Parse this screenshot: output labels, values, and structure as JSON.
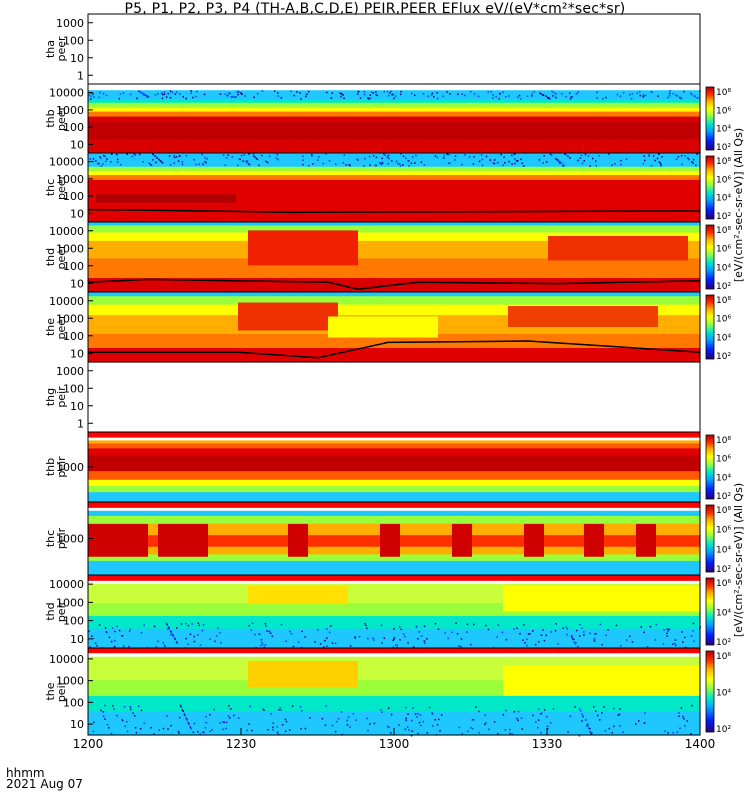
{
  "title": "P5, P1, P2, P3, P4 (TH-A,B,C,D,E) PEIR,PEER EFlux eV/(eV*cm²*sec*sr)",
  "time_axis_label": "hhmm",
  "date_label": "2021 Aug 07",
  "chart_data": {
    "type": "heatmap",
    "x_ticks": [
      "1200",
      "1230",
      "1300",
      "1330",
      "1400"
    ],
    "x_range": [
      "1200",
      "1400"
    ],
    "panels": [
      {
        "id": "tha-peer",
        "label_top": "tha",
        "label_bottom": "peer",
        "y_ticks": [
          "1000",
          "100",
          "10",
          "1"
        ],
        "colorbar": false,
        "empty": true
      },
      {
        "id": "thb-peer",
        "label_top": "thb",
        "label_bottom": "peer",
        "y_ticks": [
          "10000",
          "1000",
          "100",
          "10"
        ],
        "colorbar": true,
        "colorbar_ticks": [
          "10⁸",
          "10⁶",
          "10⁴",
          "10²"
        ]
      },
      {
        "id": "thc-peer",
        "label_top": "thc",
        "label_bottom": "peer",
        "y_ticks": [
          "10000",
          "1000",
          "100",
          "10"
        ],
        "colorbar": true,
        "colorbar_ticks": [
          "10⁸",
          "10⁶",
          "10⁴",
          "10²"
        ]
      },
      {
        "id": "thd-peer",
        "label_top": "thd",
        "label_bottom": "peer",
        "y_ticks": [
          "10000",
          "1000",
          "100",
          "10"
        ],
        "colorbar": true,
        "colorbar_ticks": [
          "10⁸",
          "10⁶",
          "10⁴",
          "10²"
        ]
      },
      {
        "id": "the-peer",
        "label_top": "the",
        "label_bottom": "peer",
        "y_ticks": [
          "10000",
          "1000",
          "100",
          "10"
        ],
        "colorbar": true,
        "colorbar_ticks": [
          "10⁸",
          "10⁶",
          "10⁴",
          "10²"
        ]
      },
      {
        "id": "thg-peir",
        "label_top": "thg",
        "label_bottom": "peir",
        "y_ticks": [
          "1000",
          "100",
          "10",
          "1"
        ],
        "colorbar": false,
        "empty": true
      },
      {
        "id": "thb-peir",
        "label_top": "thb",
        "label_bottom": "peir",
        "y_ticks": [
          "1000"
        ],
        "colorbar": true,
        "colorbar_ticks": [
          "10⁸",
          "10⁶",
          "10⁴",
          "10²"
        ]
      },
      {
        "id": "thc-peir",
        "label_top": "thc",
        "label_bottom": "peir",
        "y_ticks": [
          "1000"
        ],
        "colorbar": true,
        "colorbar_ticks": [
          "10⁸",
          "10⁶",
          "10⁴",
          "10²"
        ]
      },
      {
        "id": "thd-peir",
        "label_top": "thd",
        "label_bottom": "peir",
        "y_ticks": [
          "10000",
          "1000",
          "100",
          "10"
        ],
        "colorbar": true,
        "colorbar_ticks": [
          "10⁶",
          "10⁴",
          "10²"
        ]
      },
      {
        "id": "the-peir",
        "label_top": "the",
        "label_bottom": "peir",
        "y_ticks": [
          "10000",
          "1000",
          "100",
          "10"
        ],
        "colorbar": true,
        "colorbar_ticks": [
          "10⁶",
          "10⁴",
          "10²"
        ]
      }
    ],
    "colorbar_units_electron": "[eV/(cm²-sec-sr-eV)] (All Qs)",
    "colorbar_units_ion": "[eV/(cm²-sec-sr-eV)] (All Qs)",
    "colormap": [
      "#7f0000",
      "#e00000",
      "#ff5a00",
      "#ffae00",
      "#ffff00",
      "#9aff3a",
      "#00e8c8",
      "#00a0ff",
      "#0030ff",
      "#00008f"
    ]
  }
}
